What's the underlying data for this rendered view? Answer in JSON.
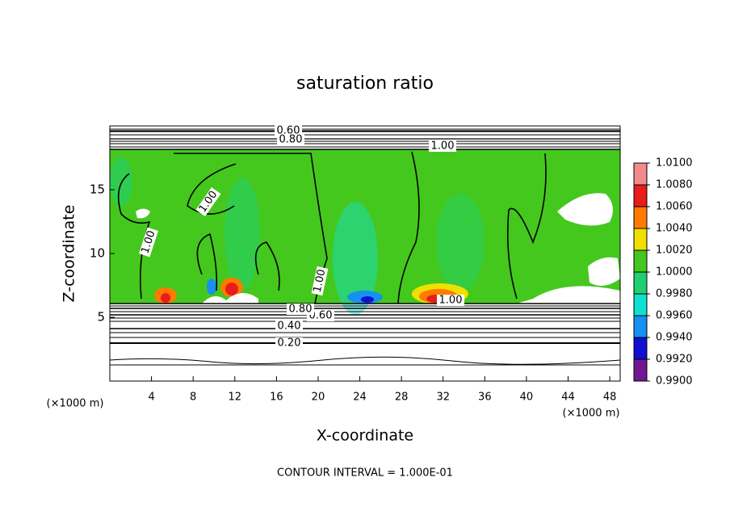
{
  "chart_data": {
    "type": "contour",
    "title": "saturation ratio",
    "x_label": "X-coordinate",
    "y_label": "Z-coordinate",
    "x_unit": "(×1000 m)",
    "annotation": "CONTOUR INTERVAL = 1.000E-01",
    "xlim": [
      0,
      49
    ],
    "ylim": [
      0,
      20
    ],
    "xticks": [
      4,
      8,
      12,
      16,
      20,
      24,
      28,
      32,
      36,
      40,
      44,
      48
    ],
    "yticks": [
      5,
      10,
      15
    ],
    "contours": [
      {
        "value": 0.2,
        "label": "0.20"
      },
      {
        "value": 0.4,
        "label": "0.40"
      },
      {
        "value": 0.6,
        "label": "0.60"
      },
      {
        "value": 0.8,
        "label": "0.80"
      },
      {
        "value": 1.0,
        "label": "1.00"
      }
    ],
    "colorbar": {
      "ticks": [
        {
          "value": 1.01,
          "label": "1.0100"
        },
        {
          "value": 1.008,
          "label": "1.0080"
        },
        {
          "value": 1.006,
          "label": "1.0060"
        },
        {
          "value": 1.004,
          "label": "1.0040"
        },
        {
          "value": 1.002,
          "label": "1.0020"
        },
        {
          "value": 1.0,
          "label": "1.0000"
        },
        {
          "value": 0.998,
          "label": "0.9980"
        },
        {
          "value": 0.996,
          "label": "0.9960"
        },
        {
          "value": 0.994,
          "label": "0.9940"
        },
        {
          "value": 0.992,
          "label": "0.9920"
        },
        {
          "value": 0.99,
          "label": "0.9900"
        }
      ],
      "colors": [
        "#f28c8c",
        "#e81c1c",
        "#ff7a00",
        "#f0e000",
        "#44c81e",
        "#20d070",
        "#10e0d0",
        "#1890f0",
        "#1010d0",
        "#701890"
      ]
    }
  }
}
